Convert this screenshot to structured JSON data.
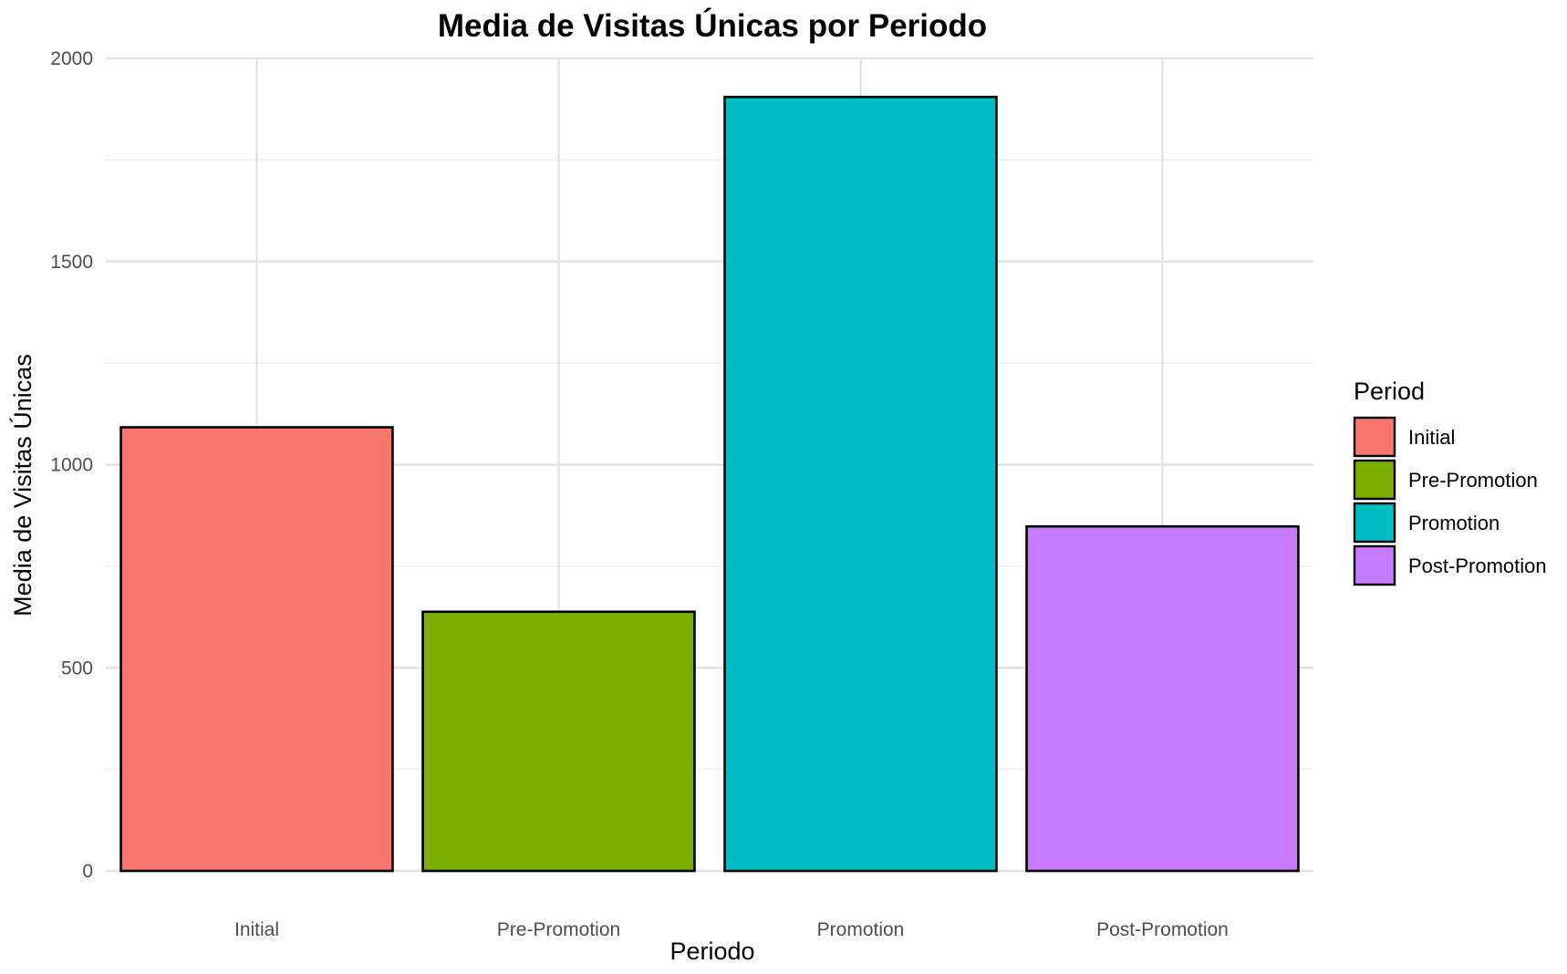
{
  "chart_data": {
    "type": "bar",
    "title": "Media de Visitas Únicas por Periodo",
    "xlabel": "Periodo",
    "ylabel": "Media de Visitas Únicas",
    "categories": [
      "Initial",
      "Pre-Promotion",
      "Promotion",
      "Post-Promotion"
    ],
    "values": [
      1092,
      638,
      1905,
      848
    ],
    "colors": [
      "#F8766D",
      "#7CAE00",
      "#00BFC4",
      "#C77CFF"
    ],
    "ylim": [
      0,
      2000
    ],
    "yticks": [
      0,
      500,
      1000,
      1500,
      2000
    ],
    "grid": true,
    "legend": {
      "title": "Period",
      "position": "right",
      "entries": [
        "Initial",
        "Pre-Promotion",
        "Promotion",
        "Post-Promotion"
      ]
    }
  }
}
